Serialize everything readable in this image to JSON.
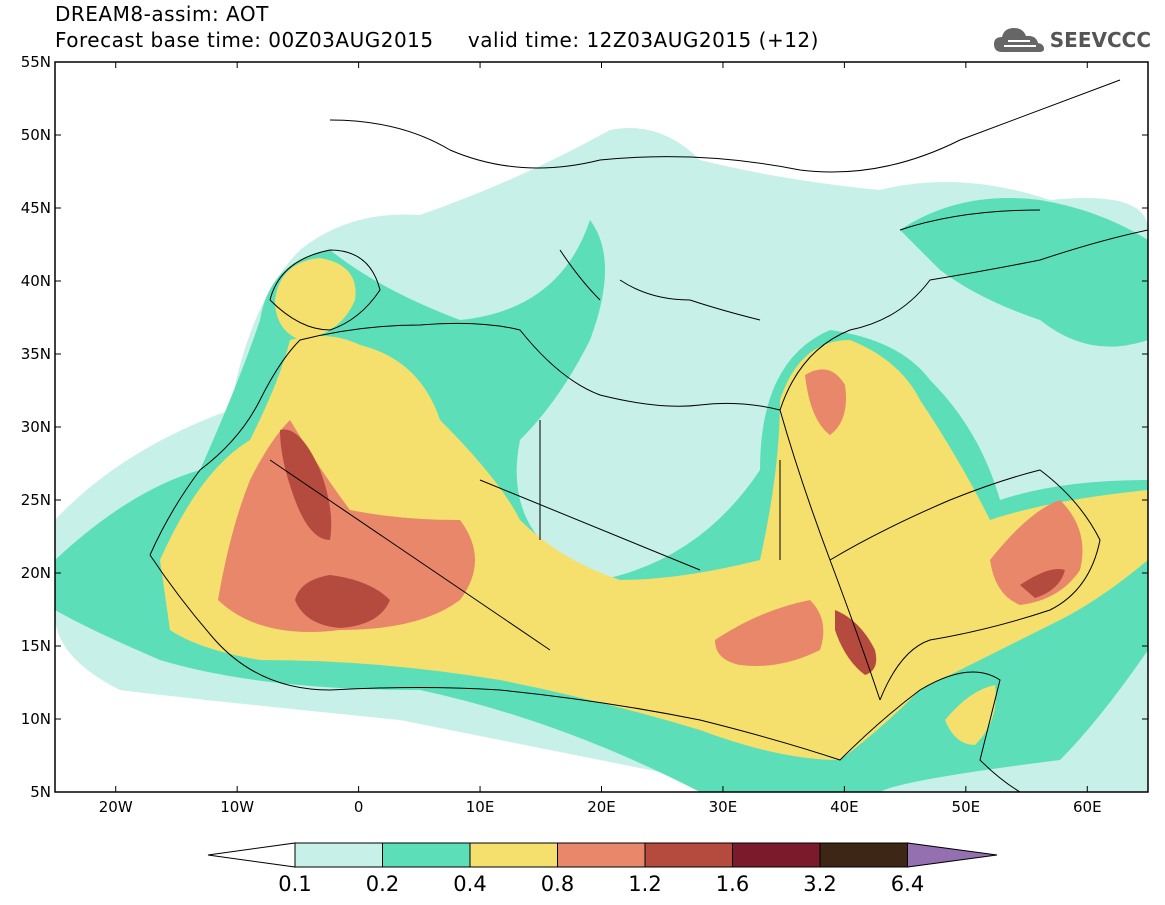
{
  "header": {
    "title": "DREAM8-assim: AOT",
    "base_time_label": "Forecast base time: 00Z03AUG2015",
    "valid_time_label": "valid time: 12Z03AUG2015 (+12)",
    "logo_text": "SEEVCCC",
    "logo_icon": "cloud-icon"
  },
  "map": {
    "region": "North Africa, Mediterranean and Middle East",
    "lon_range": [
      -25,
      65
    ],
    "lat_range": [
      5,
      55
    ],
    "x_ticks": [
      "20W",
      "10W",
      "0",
      "10E",
      "20E",
      "30E",
      "40E",
      "50E",
      "60E"
    ],
    "y_ticks": [
      "55N",
      "50N",
      "45N",
      "40N",
      "35N",
      "30N",
      "25N",
      "20N",
      "15N",
      "10N",
      "5N"
    ]
  },
  "colorbar": {
    "labels": [
      "0.1",
      "0.2",
      "0.4",
      "0.8",
      "1.2",
      "1.6",
      "3.2",
      "6.4"
    ],
    "colors": {
      "below": "#ffffff",
      "c1": "#c6f0e8",
      "c2": "#5cdfb8",
      "c3": "#f5e06e",
      "c4": "#e9876a",
      "c5": "#b54b3e",
      "c6": "#7a1a2a",
      "c7": "#3d2616",
      "above": "#9470b0"
    }
  }
}
